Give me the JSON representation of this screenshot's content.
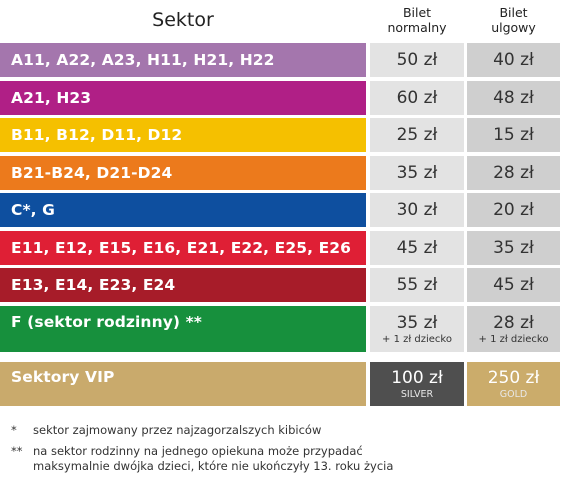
{
  "header": {
    "sector": "Sektor",
    "normal_line1": "Bilet",
    "normal_line2": "normalny",
    "reduced_line1": "Bilet",
    "reduced_line2": "ulgowy"
  },
  "rows": [
    {
      "sector": "A11, A22, A23, H11, H21, H22",
      "normal": "50 zł",
      "reduced": "40 zł",
      "color": "#a476ad"
    },
    {
      "sector": "A21, H23",
      "normal": "60 zł",
      "reduced": "48 zł",
      "color": "#b01f86"
    },
    {
      "sector": "B11, B12, D11, D12",
      "normal": "25 zł",
      "reduced": "15 zł",
      "color": "#f5c000"
    },
    {
      "sector": "B21-B24, D21-D24",
      "normal": "35 zł",
      "reduced": "28 zł",
      "color": "#ec7a1c"
    },
    {
      "sector": "C*, G",
      "normal": "30 zł",
      "reduced": "20 zł",
      "color": "#0e4f9f"
    },
    {
      "sector": "E11, E12, E15, E16, E21, E22, E25, E26",
      "normal": "45 zł",
      "reduced": "35 zł",
      "color": "#df1f35"
    },
    {
      "sector": "E13, E14, E23, E24",
      "normal": "55 zł",
      "reduced": "45 zł",
      "color": "#a71c29"
    },
    {
      "sector": "F (sektor rodzinny) **",
      "normal": "35 zł",
      "normal_sub": "+ 1 zł dziecko",
      "reduced": "28 zł",
      "reduced_sub": "+ 1 zł dziecko",
      "color": "#17903d"
    },
    {
      "sector": "Sektory VIP",
      "normal": "100 zł",
      "normal_sub": "SILVER",
      "reduced": "250 zł",
      "reduced_sub": "GOLD",
      "color": "#c9aa6c"
    }
  ],
  "notes": [
    {
      "mark": "*",
      "text": "sektor zajmowany przez najzagorzalszych kibiców"
    },
    {
      "mark": "**",
      "text": "na sektor rodzinny na jednego opiekuna może przypadać",
      "text2": "maksymalnie dwójka dzieci, które nie ukończyły 13. roku życia"
    }
  ]
}
